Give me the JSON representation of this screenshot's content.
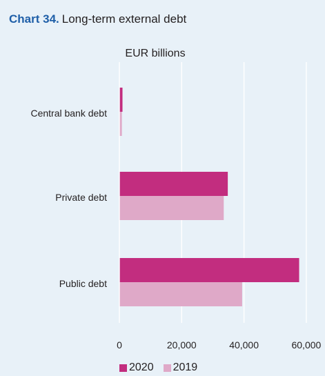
{
  "header": {
    "number": "Chart 34.",
    "text": "Long-term external debt"
  },
  "chart_data": {
    "type": "bar",
    "orientation": "horizontal",
    "unit_label": "EUR billions",
    "categories": [
      "Central bank debt",
      "Private debt",
      "Public debt"
    ],
    "series": [
      {
        "name": "2020",
        "color": "#c22d7f",
        "values": [
          1000,
          34800,
          57700
        ]
      },
      {
        "name": "2019",
        "color": "#dfa9c8",
        "values": [
          800,
          33500,
          39400
        ]
      }
    ],
    "xlim": [
      0,
      66000
    ],
    "xticks": [
      0,
      20000,
      40000,
      60000
    ],
    "xtick_labels": [
      "0",
      "20,000",
      "40,000",
      "60,000"
    ],
    "grid": true,
    "legend_position": "bottom"
  }
}
